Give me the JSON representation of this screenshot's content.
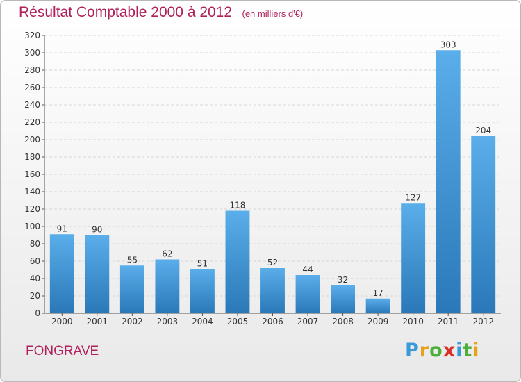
{
  "header": {
    "title": "Résultat Comptable 2000 à 2012",
    "subtitle": "(en milliers d'€)"
  },
  "footer": {
    "location": "FONGRAVE",
    "brand_letters": [
      "P",
      "r",
      "o",
      "x",
      "i",
      "t",
      "i"
    ],
    "brand_colors": [
      "#3a9ad9",
      "#e8a21a",
      "#4caf3a",
      "#d9302c",
      "#3a9ad9",
      "#4caf3a",
      "#e8a21a"
    ]
  },
  "chart_data": {
    "type": "bar",
    "categories": [
      "2000",
      "2001",
      "2002",
      "2003",
      "2004",
      "2005",
      "2006",
      "2007",
      "2008",
      "2009",
      "2010",
      "2011",
      "2012"
    ],
    "values": [
      91,
      90,
      55,
      62,
      51,
      118,
      52,
      44,
      32,
      17,
      127,
      303,
      204
    ],
    "ylim": [
      0,
      320
    ],
    "yticks": [
      0,
      20,
      40,
      60,
      80,
      100,
      120,
      140,
      160,
      180,
      200,
      220,
      240,
      260,
      280,
      300,
      320
    ],
    "grid": true,
    "colors": {
      "bar_top": "#5aaeea",
      "bar_bottom": "#2a78b8",
      "grid": "#d6d6d6",
      "text": "#333333"
    }
  }
}
